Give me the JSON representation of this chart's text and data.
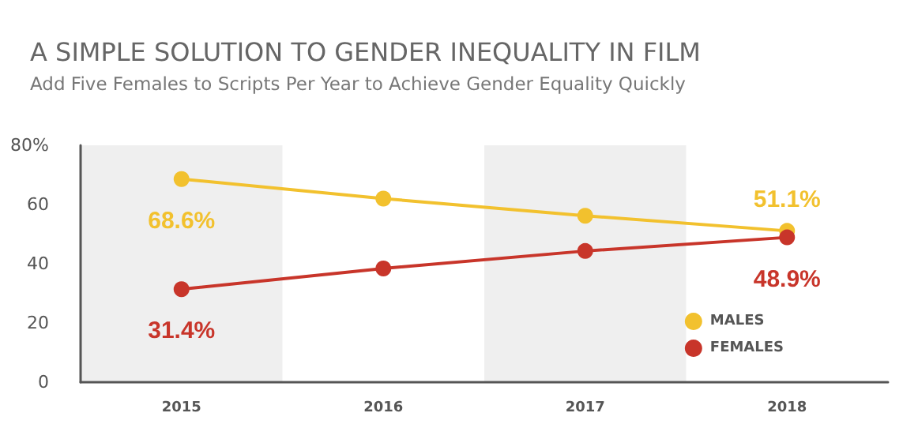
{
  "chart_data": {
    "type": "line",
    "title": "A SIMPLE SOLUTION TO GENDER INEQUALITY IN FILM",
    "subtitle": "Add Five Females to Scripts Per Year to Achieve Gender Equality Quickly",
    "categories": [
      "2015",
      "2016",
      "2017",
      "2018"
    ],
    "series": [
      {
        "name": "MALES",
        "color": "#f2c12e",
        "values": [
          68.6,
          62.0,
          56.2,
          51.1
        ],
        "value_labels": [
          "68.6%",
          null,
          null,
          "51.1%"
        ]
      },
      {
        "name": "FEMALES",
        "color": "#c8352a",
        "values": [
          31.4,
          38.4,
          44.3,
          48.9
        ],
        "value_labels": [
          "31.4%",
          null,
          null,
          "48.9%"
        ]
      }
    ],
    "ylim": [
      0,
      80
    ],
    "yticks": [
      0,
      20,
      40,
      60,
      {
        "value": 80,
        "label": "80%"
      }
    ],
    "bands": [
      {
        "axis": "x",
        "from": "2015",
        "to": "2015",
        "color": "#efefef"
      },
      {
        "axis": "x",
        "from": "2017",
        "to": "2017",
        "color": "#efefef"
      }
    ],
    "grid": false,
    "legend": "bottom right",
    "marker": "circle",
    "line_style": "solid"
  }
}
